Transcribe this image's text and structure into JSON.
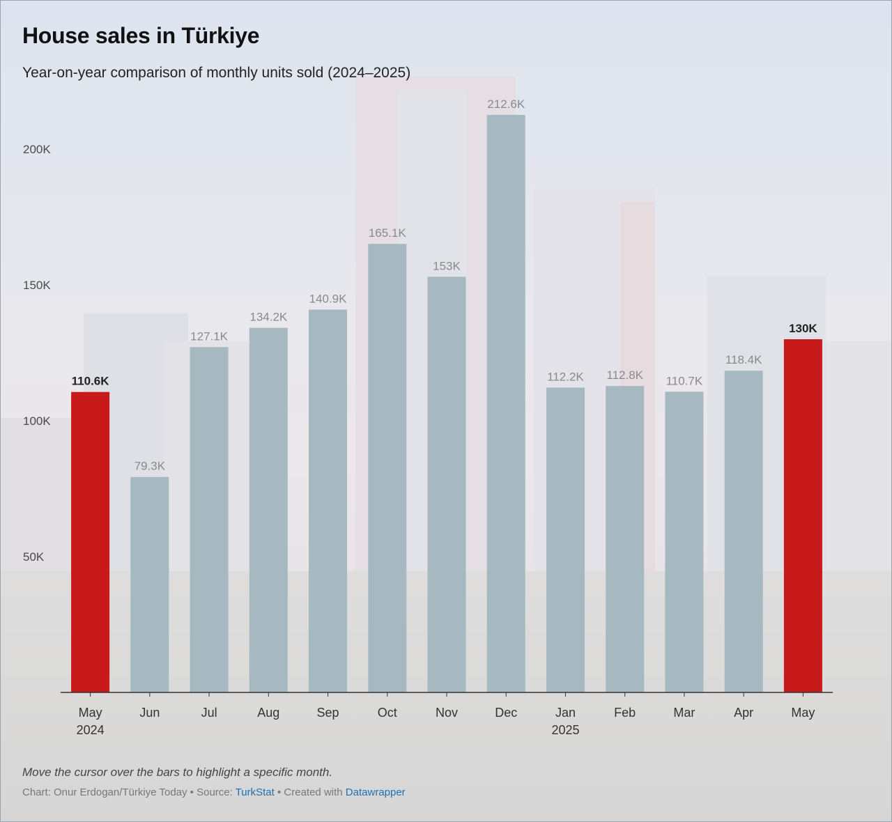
{
  "title": "House sales in Türkiye",
  "subtitle": "Year-on-year comparison of monthly units sold (2024–2025)",
  "chart_data": {
    "type": "bar",
    "categories": [
      "May 2024",
      "Jun",
      "Jul",
      "Aug",
      "Sep",
      "Oct",
      "Nov",
      "Dec",
      "Jan 2025",
      "Feb",
      "Mar",
      "Apr",
      "May"
    ],
    "tick_labels": [
      [
        "May",
        "2024"
      ],
      [
        "Jun"
      ],
      [
        "Jul"
      ],
      [
        "Aug"
      ],
      [
        "Sep"
      ],
      [
        "Oct"
      ],
      [
        "Nov"
      ],
      [
        "Dec"
      ],
      [
        "Jan",
        "2025"
      ],
      [
        "Feb"
      ],
      [
        "Mar"
      ],
      [
        "Apr"
      ],
      [
        "May"
      ]
    ],
    "values": [
      110.6,
      79.3,
      127.1,
      134.2,
      140.9,
      165.1,
      153,
      212.6,
      112.2,
      112.8,
      110.7,
      118.4,
      130
    ],
    "value_labels": [
      "110.6K",
      "79.3K",
      "127.1K",
      "134.2K",
      "140.9K",
      "165.1K",
      "153K",
      "212.6K",
      "112.2K",
      "112.8K",
      "110.7K",
      "118.4K",
      "130K"
    ],
    "highlighted": [
      true,
      false,
      false,
      false,
      false,
      false,
      false,
      false,
      false,
      false,
      false,
      false,
      true
    ],
    "ylim": [
      0,
      220
    ],
    "yticks": [
      50,
      100,
      150,
      200
    ],
    "ytick_labels": [
      "50K",
      "100K",
      "150K",
      "200K"
    ],
    "grid": false,
    "colors": {
      "default": "#a7b9c0",
      "highlight": "#c91a1b"
    }
  },
  "footer": {
    "note": "Move the cursor over the bars to highlight a specific month.",
    "credit_prefix": "Chart: Onur Erdogan/Türkiye Today • Source: ",
    "source_link": "TurkStat",
    "credit_middle": " • Created with ",
    "tool_link": "Datawrapper"
  }
}
